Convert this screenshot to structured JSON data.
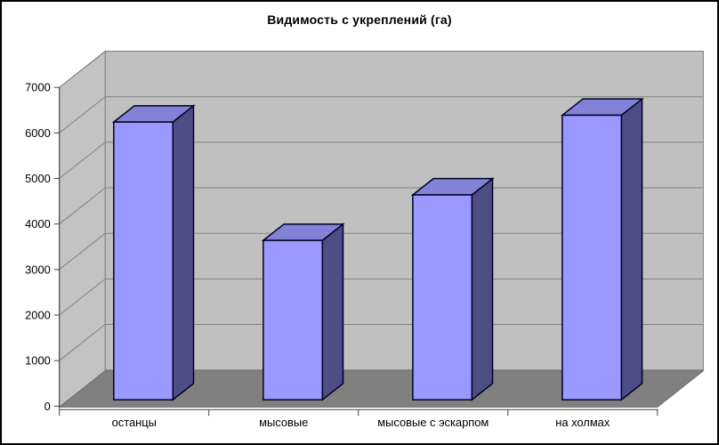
{
  "window": {
    "background": "#FFFFFF",
    "border_color": "#000000"
  },
  "chart_data": {
    "type": "bar",
    "projection": "3d-column",
    "title": "Видимость с укреплений (га)",
    "categories": [
      "останцы",
      "мысовые",
      "мысовые с эскарпом",
      "на холмах"
    ],
    "values": [
      6100,
      3500,
      4500,
      6250
    ],
    "xlabel": "",
    "ylabel": "",
    "ylim": [
      0,
      7000
    ],
    "ytick_step": 1000,
    "yticks": [
      0,
      1000,
      2000,
      3000,
      4000,
      5000,
      6000,
      7000
    ],
    "grid": true,
    "legend": false,
    "colors": {
      "bar_front": "#9999FF",
      "bar_top": "#8282D6",
      "bar_side": "#4E4E87",
      "bar_outline": "#000022",
      "wall": "#C0C0C0",
      "side_wall": "#C3C3C3",
      "floor": "#808080",
      "floor_outline": "#6B6B6B",
      "gridline": "#808080",
      "axis": "#404040",
      "text": "#000000"
    }
  }
}
